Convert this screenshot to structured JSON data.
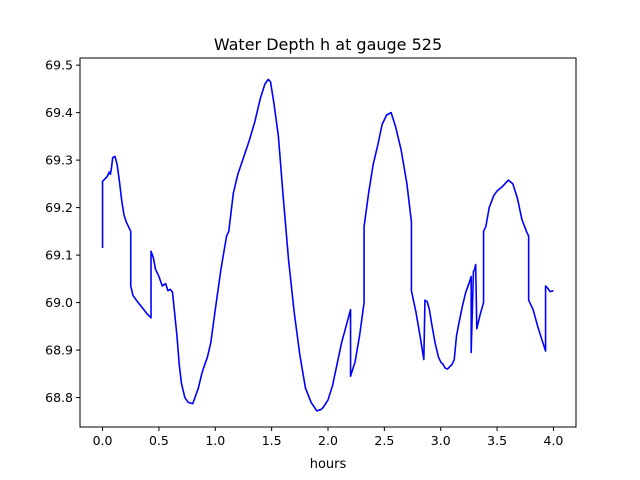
{
  "chart_data": {
    "type": "line",
    "title": "Water Depth h at gauge 525",
    "xlabel": "hours",
    "ylabel": "",
    "xlim": [
      -0.2,
      4.2
    ],
    "ylim": [
      68.738,
      69.515
    ],
    "xticks": [
      0.0,
      0.5,
      1.0,
      1.5,
      2.0,
      2.5,
      3.0,
      3.5,
      4.0
    ],
    "xtick_labels": [
      "0.0",
      "0.5",
      "1.0",
      "1.5",
      "2.0",
      "2.5",
      "3.0",
      "3.5",
      "4.0"
    ],
    "yticks": [
      68.8,
      68.9,
      69.0,
      69.1,
      69.2,
      69.3,
      69.4,
      69.5
    ],
    "ytick_labels": [
      "68.8",
      "68.9",
      "69.0",
      "69.1",
      "69.2",
      "69.3",
      "69.4",
      "69.5"
    ],
    "grid": false,
    "legend": "none",
    "series": [
      {
        "color": "#0000ff",
        "x": [
          0.0,
          0.0,
          0.04,
          0.06,
          0.07,
          0.08,
          0.09,
          0.11,
          0.13,
          0.15,
          0.17,
          0.19,
          0.21,
          0.23,
          0.25,
          0.25,
          0.27,
          0.3,
          0.35,
          0.4,
          0.43,
          0.43,
          0.45,
          0.47,
          0.5,
          0.53,
          0.56,
          0.58,
          0.6,
          0.62,
          0.63,
          0.66,
          0.68,
          0.7,
          0.73,
          0.76,
          0.8,
          0.85,
          0.88,
          0.9,
          0.93,
          0.96,
          1.0,
          1.05,
          1.1,
          1.12,
          1.16,
          1.2,
          1.25,
          1.3,
          1.35,
          1.4,
          1.44,
          1.47,
          1.49,
          1.52,
          1.56,
          1.6,
          1.65,
          1.7,
          1.75,
          1.8,
          1.85,
          1.9,
          1.94,
          1.96,
          2.0,
          2.04,
          2.08,
          2.12,
          2.16,
          2.2,
          2.2,
          2.24,
          2.28,
          2.32,
          2.32,
          2.36,
          2.4,
          2.44,
          2.48,
          2.52,
          2.56,
          2.6,
          2.65,
          2.7,
          2.74,
          2.74,
          2.78,
          2.82,
          2.85,
          2.86,
          2.88,
          2.9,
          2.92,
          2.95,
          2.98,
          3.0,
          3.02,
          3.04,
          3.06,
          3.08,
          3.1,
          3.12,
          3.14,
          3.16,
          3.19,
          3.22,
          3.25,
          3.27,
          3.27,
          3.29,
          3.3,
          3.31,
          3.32,
          3.32,
          3.35,
          3.38,
          3.38,
          3.4,
          3.43,
          3.47,
          3.5,
          3.55,
          3.6,
          3.64,
          3.68,
          3.72,
          3.76,
          3.78,
          3.78,
          3.82,
          3.86,
          3.9,
          3.93,
          3.93,
          3.95,
          3.97,
          4.0
        ],
        "y": [
          69.115,
          69.255,
          69.265,
          69.275,
          69.27,
          69.285,
          69.305,
          69.308,
          69.29,
          69.255,
          69.215,
          69.185,
          69.17,
          69.16,
          69.15,
          69.035,
          69.015,
          69.005,
          68.99,
          68.975,
          68.968,
          69.108,
          69.095,
          69.07,
          69.055,
          69.035,
          69.04,
          69.025,
          69.028,
          69.022,
          69.0,
          68.93,
          68.87,
          68.83,
          68.8,
          68.79,
          68.787,
          68.82,
          68.85,
          68.865,
          68.885,
          68.915,
          68.985,
          69.07,
          69.14,
          69.15,
          69.23,
          69.27,
          69.305,
          69.34,
          69.38,
          69.43,
          69.46,
          69.47,
          69.465,
          69.42,
          69.35,
          69.23,
          69.09,
          68.98,
          68.89,
          68.82,
          68.79,
          68.772,
          68.775,
          68.78,
          68.795,
          68.825,
          68.87,
          68.915,
          68.95,
          68.985,
          68.845,
          68.875,
          68.93,
          69.0,
          69.16,
          69.23,
          69.29,
          69.33,
          69.375,
          69.395,
          69.4,
          69.37,
          69.32,
          69.25,
          69.17,
          69.025,
          68.98,
          68.925,
          68.88,
          69.005,
          69.002,
          68.985,
          68.955,
          68.915,
          68.885,
          68.875,
          68.87,
          68.862,
          68.86,
          68.865,
          68.87,
          68.88,
          68.93,
          68.955,
          68.99,
          69.02,
          69.04,
          69.055,
          68.895,
          69.065,
          69.07,
          69.08,
          68.945,
          68.945,
          68.975,
          69.0,
          69.15,
          69.16,
          69.2,
          69.225,
          69.235,
          69.245,
          69.258,
          69.25,
          69.22,
          69.175,
          69.15,
          69.14,
          69.005,
          68.985,
          68.95,
          68.92,
          68.898,
          69.035,
          69.03,
          69.023,
          69.025
        ]
      }
    ]
  }
}
